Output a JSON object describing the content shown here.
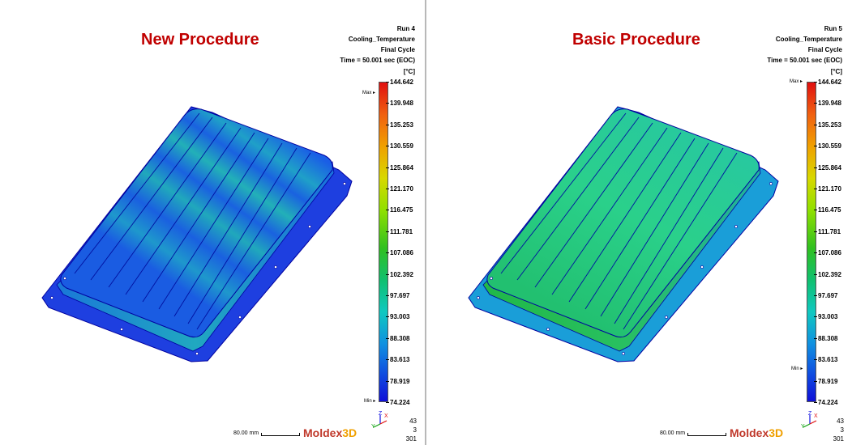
{
  "colors": {
    "title": "#c00000",
    "divider": "#b8b8b8"
  },
  "panels": [
    {
      "title": "New Procedure",
      "info": [
        "Run 4",
        "Cooling_Temperature",
        "Final Cycle",
        "Time = 50.001 sec (EOC)"
      ],
      "unit": "[°C]",
      "scale_values": [
        "144.642",
        "139.948",
        "135.253",
        "130.559",
        "125.864",
        "121.170",
        "116.475",
        "111.781",
        "107.086",
        "102.392",
        "97.697",
        "93.003",
        "88.308",
        "83.613",
        "78.919",
        "74.224"
      ],
      "max_label": "Max",
      "min_label": "Min",
      "max_marker_fraction": 0.035,
      "min_marker_fraction": 1.0,
      "scalebar": "80.00 mm",
      "logo": {
        "part1": "Moldex",
        "part2": "3D"
      },
      "stats": [
        "43",
        "3",
        "301"
      ],
      "triad": {
        "z": "Z",
        "y": "Y",
        "x": "X"
      },
      "colormap": "mostly-blue-with-green-bands"
    },
    {
      "title": "Basic Procedure",
      "info": [
        "Run 5",
        "Cooling_Temperature",
        "Final Cycle",
        "Time = 50.001 sec (EOC)"
      ],
      "unit": "[°C]",
      "scale_values": [
        "144.642",
        "139.948",
        "135.253",
        "130.559",
        "125.864",
        "121.170",
        "116.475",
        "111.781",
        "107.086",
        "102.392",
        "97.697",
        "93.003",
        "88.308",
        "83.613",
        "78.919",
        "74.224"
      ],
      "max_label": "Max",
      "min_label": "Min",
      "max_marker_fraction": 0.0,
      "min_marker_fraction": 0.9,
      "scalebar": "80.00 mm",
      "logo": {
        "part1": "Moldex",
        "part2": "3D"
      },
      "stats": [
        "43",
        "3",
        "301"
      ],
      "triad": {
        "z": "Z",
        "y": "Y",
        "x": "X"
      },
      "colormap": "mostly-green"
    }
  ]
}
